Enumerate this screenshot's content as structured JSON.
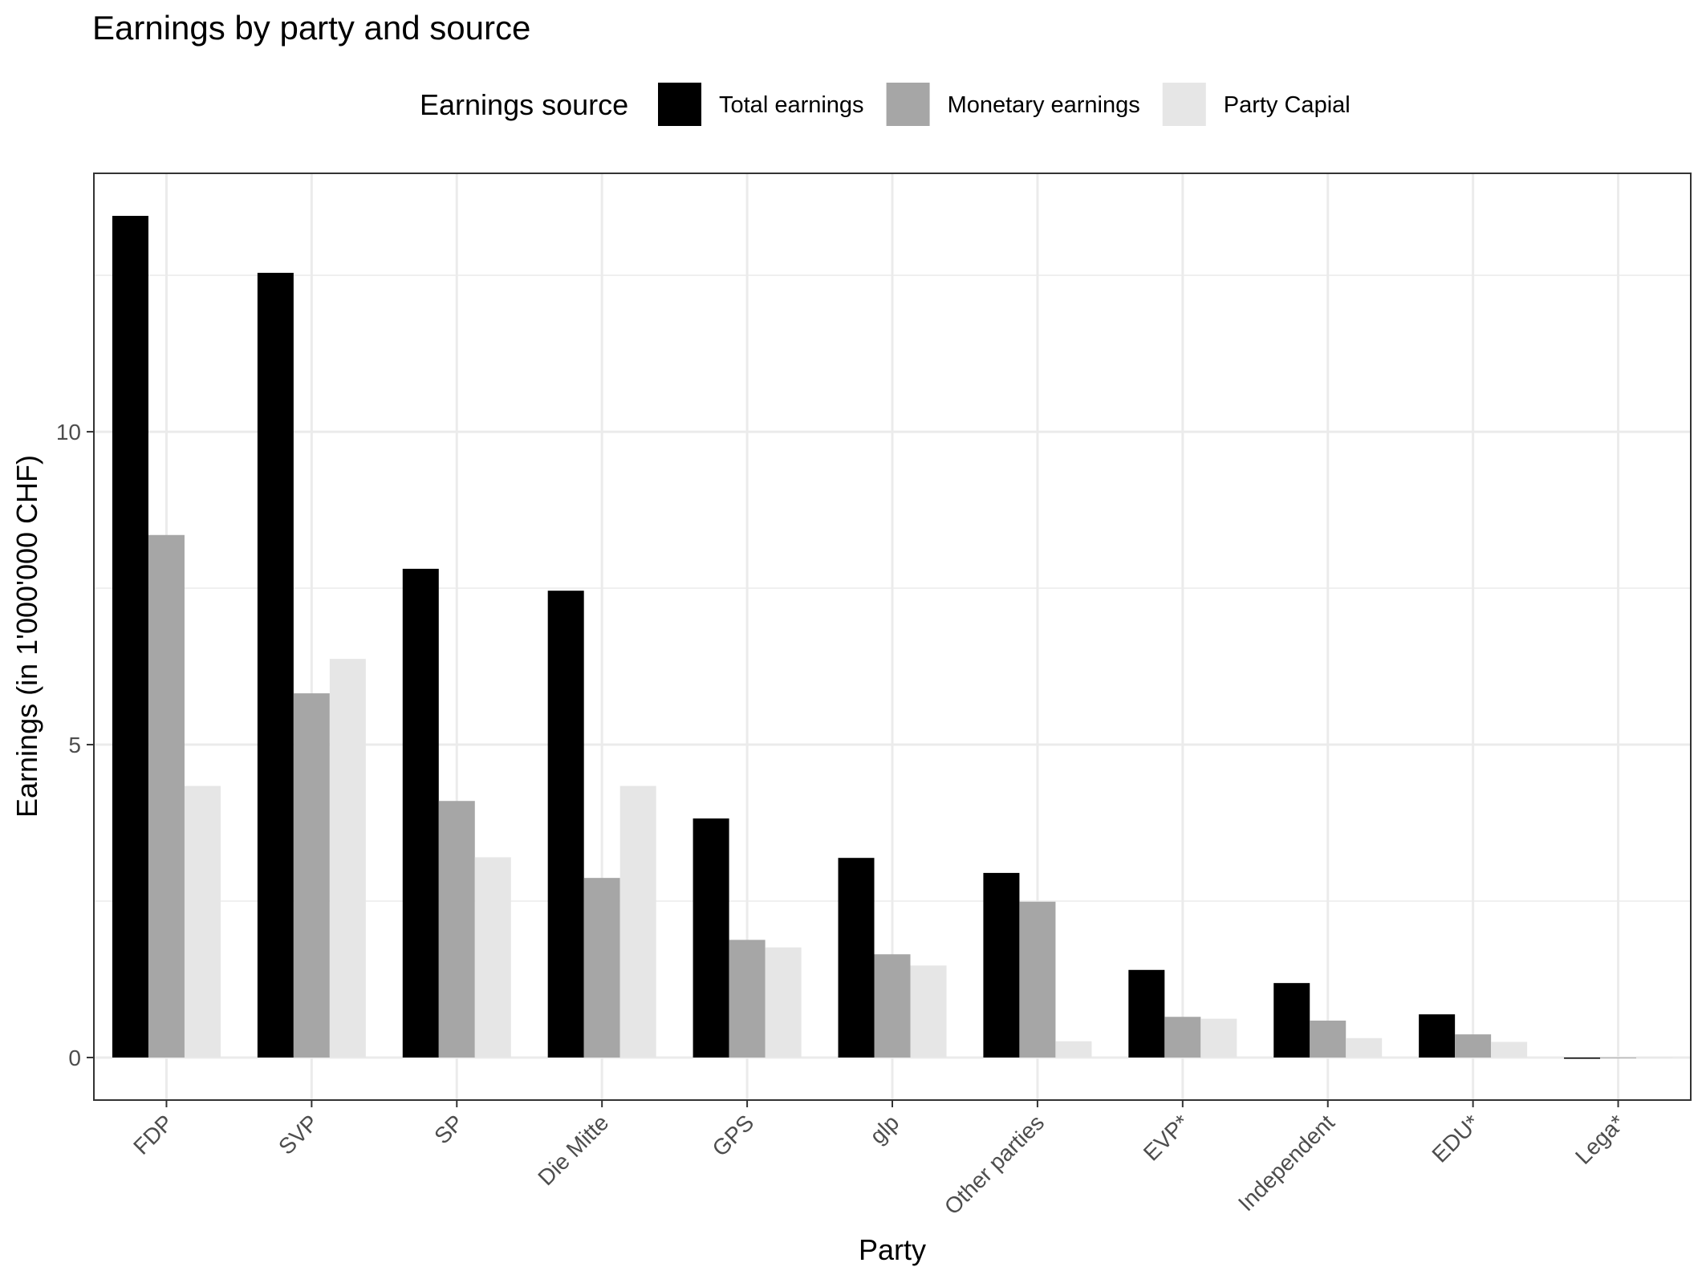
{
  "chart_data": {
    "type": "bar",
    "title": "Earnings by party and source",
    "xlabel": "Party",
    "ylabel": "Earnings (in 1'000'000 CHF)",
    "legend": {
      "title": "Earnings source",
      "position": "top"
    },
    "categories": [
      "FDP",
      "SVP",
      "SP",
      "Die Mitte",
      "GPS",
      "glp",
      "Other parties",
      "EVP*",
      "Independent",
      "EDU*",
      "Lega*"
    ],
    "series": [
      {
        "name": "Total earnings",
        "color": "#000000",
        "values": [
          13.45,
          12.54,
          7.81,
          7.46,
          3.82,
          3.19,
          2.95,
          1.4,
          1.19,
          0.69,
          -0.02
        ]
      },
      {
        "name": "Monetary earnings",
        "color": "#a6a6a6",
        "values": [
          8.35,
          5.82,
          4.1,
          2.87,
          1.88,
          1.65,
          2.49,
          0.65,
          0.59,
          0.37,
          -0.01
        ]
      },
      {
        "name": "Party Capial",
        "color": "#e6e6e6",
        "values": [
          4.34,
          6.37,
          3.2,
          4.34,
          1.76,
          1.47,
          0.26,
          0.62,
          0.31,
          0.25,
          -0.01
        ]
      }
    ],
    "ylim": [
      -0.68,
      14.13
    ],
    "yticks": [
      0,
      5,
      10
    ],
    "grid": true
  }
}
